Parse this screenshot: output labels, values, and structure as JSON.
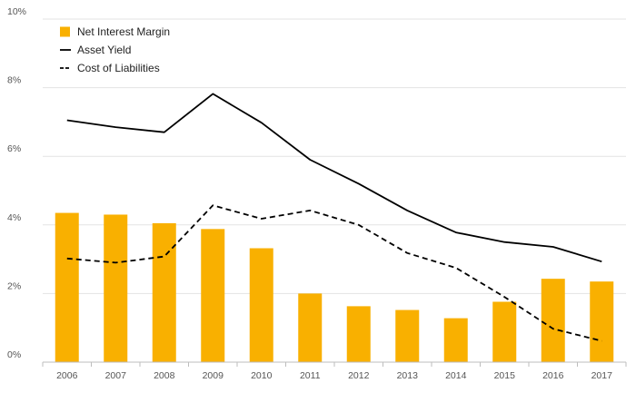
{
  "chart_data": {
    "type": "bar",
    "categories": [
      "2006",
      "2007",
      "2008",
      "2009",
      "2010",
      "2011",
      "2012",
      "2013",
      "2014",
      "2015",
      "2016",
      "2017"
    ],
    "ylim": [
      0,
      10
    ],
    "yticks": [
      0,
      2,
      4,
      6,
      8,
      10
    ],
    "ytick_labels": [
      "0%",
      "2%",
      "4%",
      "6%",
      "8%",
      "10%"
    ],
    "grid": true,
    "legend_position": "top-left",
    "series": [
      {
        "name": "Net Interest Margin",
        "kind": "bar",
        "color": "#F9B000",
        "values": [
          4.35,
          4.3,
          4.05,
          3.88,
          3.32,
          2.0,
          1.63,
          1.52,
          1.28,
          1.76,
          2.43,
          2.35
        ]
      },
      {
        "name": "Asset Yield",
        "kind": "line",
        "style": "solid",
        "color": "#000000",
        "values": [
          7.05,
          6.85,
          6.7,
          7.82,
          6.98,
          5.9,
          5.2,
          4.42,
          3.78,
          3.5,
          3.36,
          2.93
        ]
      },
      {
        "name": "Cost of Liabilities",
        "kind": "line",
        "style": "dashed",
        "color": "#000000",
        "values": [
          3.02,
          2.9,
          3.08,
          4.57,
          4.18,
          4.42,
          4.0,
          3.18,
          2.75,
          1.9,
          0.97,
          0.62
        ]
      }
    ]
  }
}
